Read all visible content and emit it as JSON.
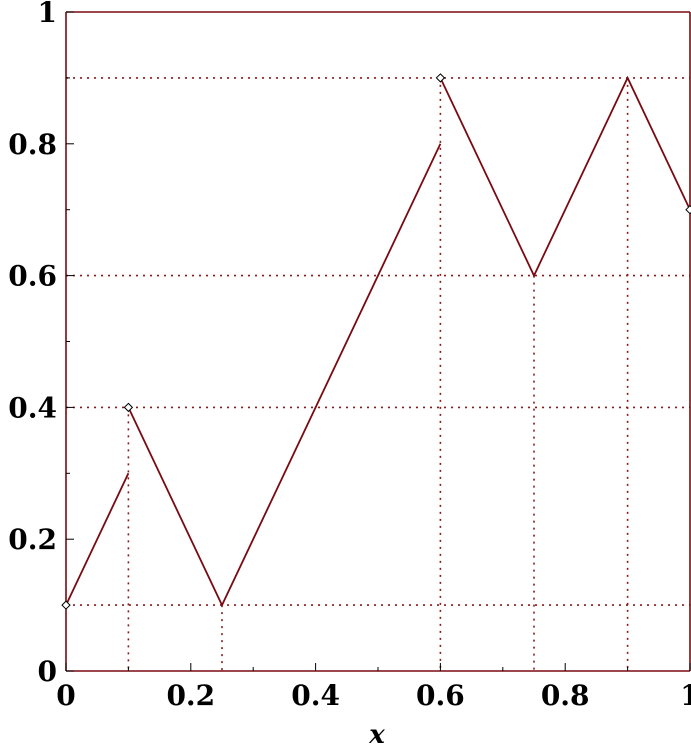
{
  "chart_data": {
    "type": "line",
    "xlabel": "x",
    "ylabel": "",
    "xlim": [
      0,
      1
    ],
    "ylim": [
      0,
      1
    ],
    "x_ticks": [
      "0",
      "0.2",
      "0.4",
      "0.6",
      "0.8",
      "1"
    ],
    "y_ticks": [
      "0",
      "0.2",
      "0.4",
      "0.6",
      "0.8",
      "1"
    ],
    "series": [
      {
        "segments": [
          [
            [
              0,
              0.1
            ],
            [
              0.1,
              0.3
            ]
          ],
          [
            [
              0.1,
              0.4
            ],
            [
              0.25,
              0.1
            ],
            [
              0.6,
              0.8
            ]
          ],
          [
            [
              0.6,
              0.9
            ],
            [
              0.75,
              0.6
            ],
            [
              0.9,
              0.9
            ],
            [
              1,
              0.7
            ]
          ]
        ],
        "markers": [
          [
            0,
            0.1
          ],
          [
            0.1,
            0.4
          ],
          [
            0.6,
            0.9
          ],
          [
            1,
            0.7
          ]
        ]
      }
    ],
    "reference_lines": {
      "horizontal": [
        0.1,
        0.4,
        0.6,
        0.9
      ],
      "vertical": [
        0.1,
        0.25,
        0.6,
        0.75,
        0.9
      ]
    },
    "grid": false,
    "colors": {
      "line": "#7a0a12",
      "reference": "#8b1a1a",
      "axis": "#7a0a12",
      "marker_fill": "#ffffff",
      "marker_stroke": "#000000"
    }
  }
}
